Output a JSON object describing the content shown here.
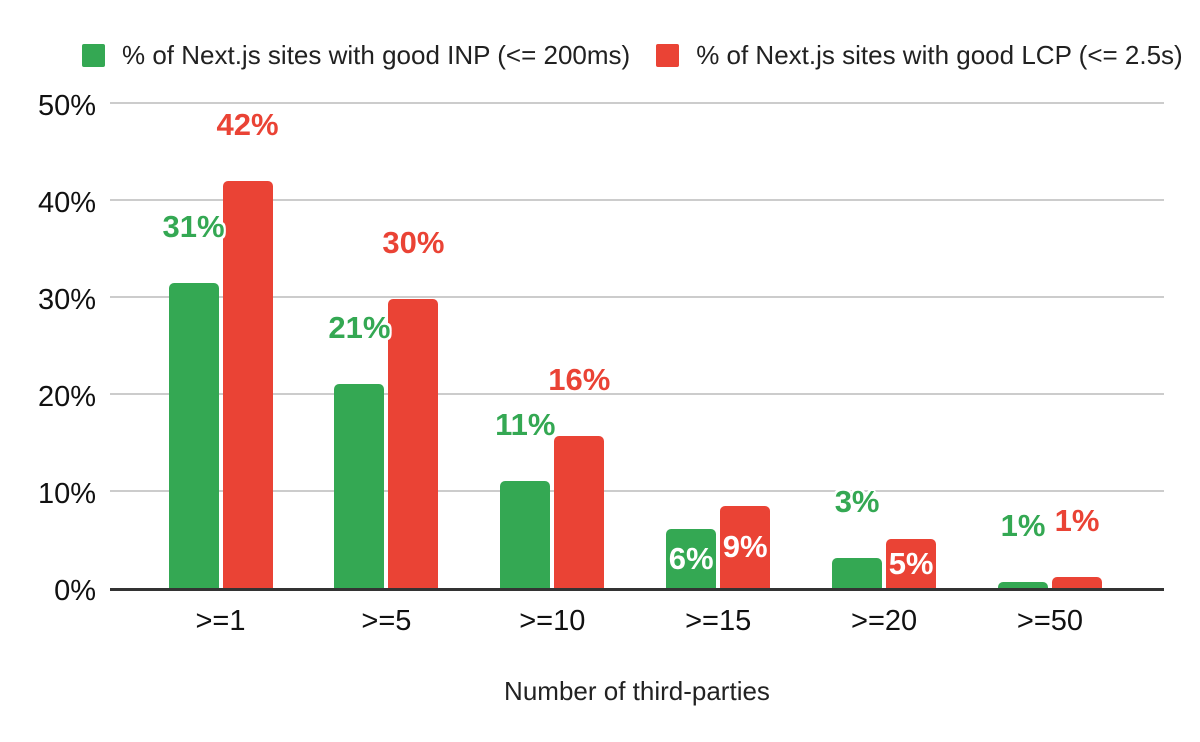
{
  "chart_data": {
    "type": "bar",
    "title": "",
    "categories": [
      ">=1",
      ">=5",
      ">=10",
      ">=15",
      ">=20",
      ">=50"
    ],
    "series": [
      {
        "name": "% of Next.js sites with good INP (<= 200ms)",
        "color": "#34a853",
        "values": [
          31.4,
          21,
          11,
          6.1,
          3.1,
          0.6
        ],
        "labels": [
          "31%",
          "21%",
          "11%",
          "6%",
          "3%",
          "1%"
        ],
        "label_placement": [
          "outside",
          "outside",
          "outside",
          "inside",
          "outside",
          "outside"
        ]
      },
      {
        "name": "% of Next.js sites with good LCP (<= 2.5s)",
        "color": "#ea4335",
        "values": [
          42,
          29.8,
          15.7,
          8.5,
          5,
          1.1
        ],
        "labels": [
          "42%",
          "30%",
          "16%",
          "9%",
          "5%",
          "1%"
        ],
        "label_placement": [
          "outside",
          "outside",
          "outside",
          "inside",
          "inside",
          "outside"
        ]
      }
    ],
    "xlabel": "Number of third-parties",
    "ylabel": "",
    "ylim": [
      0,
      50
    ],
    "y_ticks": [
      "0%",
      "10%",
      "20%",
      "30%",
      "40%",
      "50%"
    ],
    "grid": true,
    "legend_position": "top",
    "colors": {
      "grid_line": "#cccccc",
      "axis_line": "#333333",
      "tick_text": "#111111",
      "inside_label_text": "#ffffff",
      "background": "#ffffff"
    }
  }
}
